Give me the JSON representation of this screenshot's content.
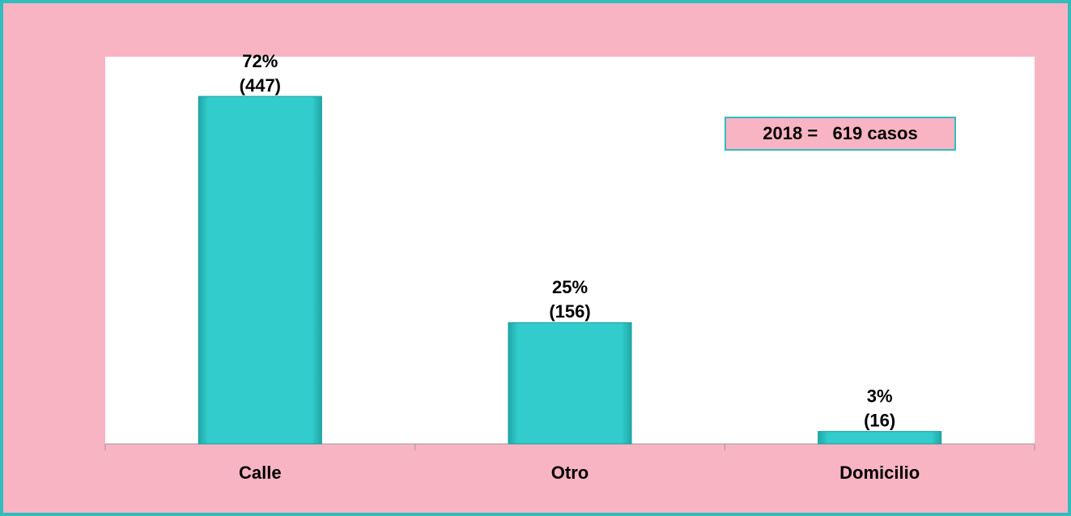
{
  "chart_data": {
    "type": "bar",
    "categories": [
      "Calle",
      "Otro",
      "Domicilio"
    ],
    "values": [
      447,
      156,
      16
    ],
    "value_labels": [
      "(447)",
      "(156)",
      "(16)"
    ],
    "percent_labels": [
      "72%",
      "25%",
      "3%"
    ],
    "color": "#33cccc",
    "annotation": "2018 =   619 casos"
  }
}
